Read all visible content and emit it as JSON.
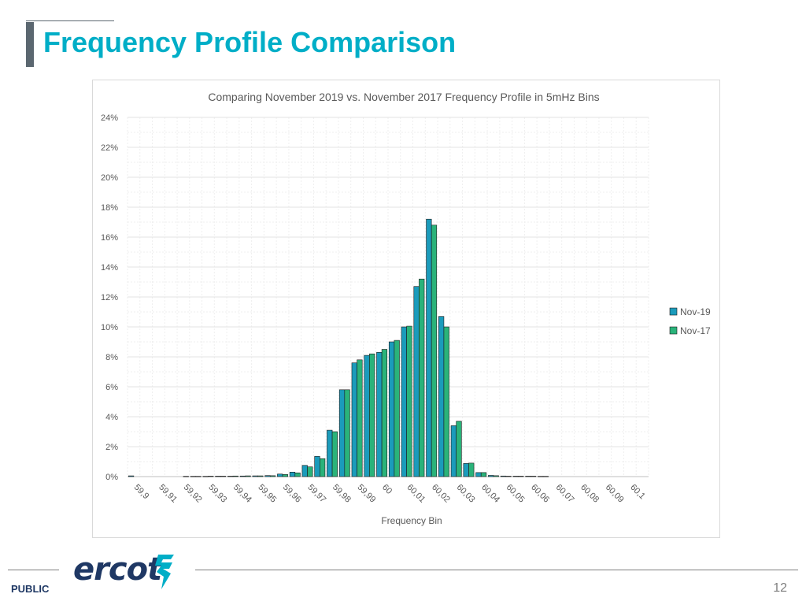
{
  "page": {
    "title": "Frequency Profile Comparison",
    "footer_label": "PUBLIC",
    "page_number": "12",
    "logo_text": "ercot",
    "logo_icon": "ercot-lightning-mark",
    "accent_color": "#00aec7"
  },
  "chart_data": {
    "type": "bar",
    "title": "Comparing November 2019 vs. November 2017 Frequency Profile in 5mHz Bins",
    "xlabel": "Frequency Bin",
    "ylabel": "",
    "ylim": [
      0,
      24
    ],
    "yticks": [
      0,
      2,
      4,
      6,
      8,
      10,
      12,
      14,
      16,
      18,
      20,
      22,
      24
    ],
    "ytick_suffix": "%",
    "grid": true,
    "legend": "right",
    "x_tick_labels": [
      "59,9",
      "59,91",
      "59,92",
      "59,93",
      "59,94",
      "59,95",
      "59,96",
      "59,97",
      "59,98",
      "59,99",
      "60",
      "60,01",
      "60,02",
      "60,03",
      "60,04",
      "60,05",
      "60,06",
      "60,07",
      "60,08",
      "60,09",
      "60,1"
    ],
    "bin_count": 42,
    "series": [
      {
        "name": "Nov-19",
        "color": "#1b9bbb",
        "values": [
          0.05,
          0,
          0,
          0,
          0,
          0.02,
          0.02,
          0.03,
          0.03,
          0.04,
          0.05,
          0.07,
          0.17,
          0.3,
          0.75,
          1.35,
          3.1,
          5.8,
          7.6,
          8.1,
          8.3,
          9.0,
          10.0,
          12.7,
          17.2,
          10.7,
          3.4,
          0.88,
          0.27,
          0.08,
          0.04,
          0.03,
          0.03,
          0.02,
          0,
          0,
          0,
          0,
          0,
          0,
          0,
          0
        ]
      },
      {
        "name": "Nov-17",
        "color": "#2ab37a",
        "values": [
          0,
          0,
          0,
          0,
          0.02,
          0.02,
          0.03,
          0.03,
          0.04,
          0.05,
          0.05,
          0.06,
          0.14,
          0.25,
          0.65,
          1.2,
          3.0,
          5.8,
          7.8,
          8.2,
          8.5,
          9.1,
          10.05,
          13.2,
          16.8,
          10.0,
          3.7,
          0.9,
          0.27,
          0.06,
          0.03,
          0.03,
          0.03,
          0.02,
          0,
          0,
          0,
          0,
          0,
          0,
          0,
          0
        ]
      }
    ]
  }
}
